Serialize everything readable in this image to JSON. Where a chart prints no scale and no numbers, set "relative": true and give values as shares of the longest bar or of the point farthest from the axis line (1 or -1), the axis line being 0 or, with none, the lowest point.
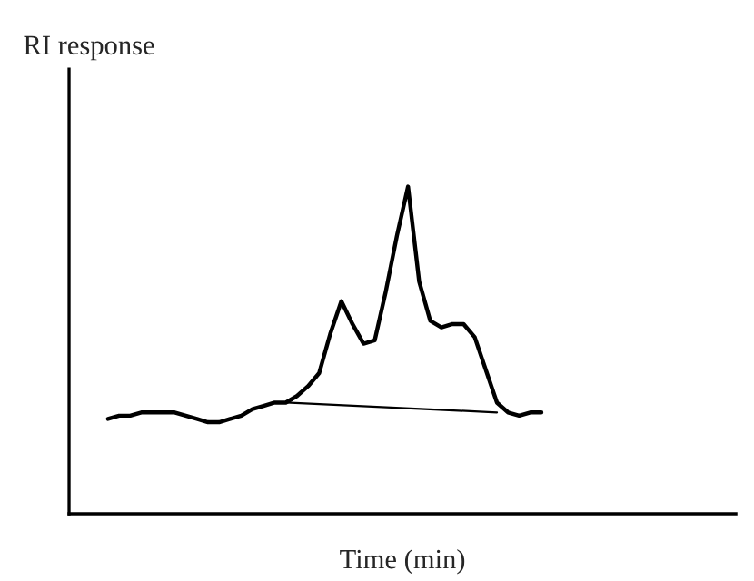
{
  "chart_data": {
    "type": "line",
    "relative": true,
    "ylabel": "RI response",
    "xlabel": "Time (min)",
    "categories": [
      null,
      null,
      null,
      null,
      null,
      null,
      null,
      null,
      null,
      null,
      null,
      null,
      null,
      null,
      null,
      null,
      null,
      null,
      null,
      null,
      null,
      null,
      null,
      null,
      null,
      null,
      null,
      null,
      null,
      null,
      null,
      null,
      null,
      null,
      null,
      null,
      null,
      null,
      null,
      null,
      null,
      null,
      null,
      null,
      null,
      null,
      null,
      null,
      null,
      null,
      null,
      null,
      null,
      null,
      null,
      null,
      null,
      null,
      null,
      null
    ],
    "series": [
      {
        "color": "#000000",
        "values": [
          null,
          null,
          null,
          0.29,
          0.3,
          0.3,
          0.31,
          0.31,
          0.31,
          0.31,
          0.3,
          0.29,
          0.28,
          0.28,
          0.29,
          0.3,
          0.32,
          0.33,
          0.34,
          0.34,
          0.36,
          0.39,
          0.43,
          0.55,
          0.65,
          0.58,
          0.52,
          0.53,
          0.68,
          0.85,
          1.0,
          0.71,
          0.59,
          0.57,
          0.58,
          0.58,
          0.54,
          0.44,
          0.34,
          0.31,
          0.3,
          0.31,
          0.31,
          null,
          null,
          null,
          null,
          null,
          null,
          null,
          null,
          null,
          null,
          null,
          null,
          null,
          null,
          null,
          null,
          null
        ]
      },
      {
        "color": "#000000",
        "values": [
          null,
          null,
          null,
          null,
          null,
          null,
          null,
          null,
          null,
          null,
          null,
          null,
          null,
          null,
          null,
          null,
          null,
          null,
          null,
          0.34,
          null,
          null,
          null,
          null,
          null,
          null,
          null,
          null,
          null,
          null,
          null,
          null,
          null,
          null,
          null,
          null,
          null,
          null,
          0.31,
          null,
          null,
          null,
          null,
          null,
          null,
          null,
          null,
          null,
          null,
          null,
          null,
          null,
          null,
          null,
          null,
          null,
          null,
          null,
          null,
          null
        ]
      }
    ],
    "grid": false,
    "legend": false,
    "tick_labels": false
  }
}
